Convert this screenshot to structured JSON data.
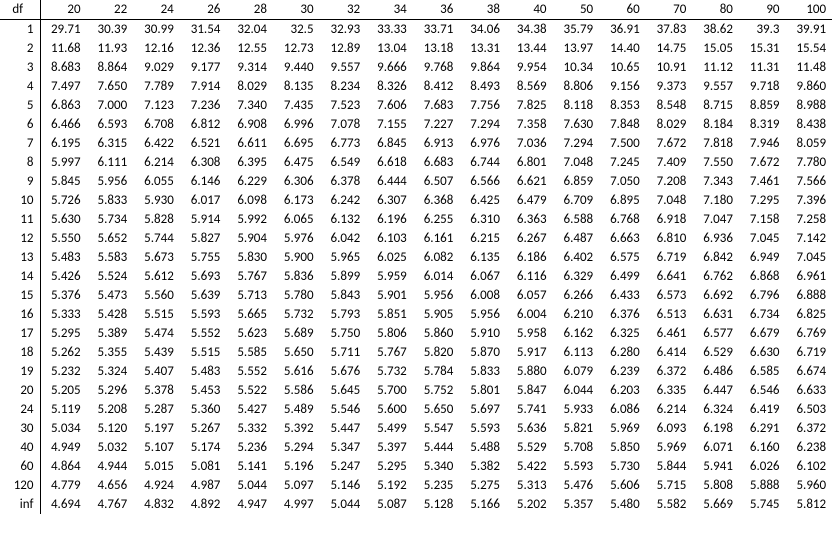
{
  "table": {
    "type": "table",
    "header_label": "df",
    "columns": [
      "20",
      "22",
      "24",
      "26",
      "28",
      "30",
      "32",
      "34",
      "36",
      "38",
      "40",
      "50",
      "60",
      "70",
      "80",
      "90",
      "100"
    ],
    "row_labels": [
      "1",
      "2",
      "3",
      "4",
      "5",
      "6",
      "7",
      "8",
      "9",
      "10",
      "11",
      "12",
      "13",
      "14",
      "15",
      "16",
      "17",
      "18",
      "19",
      "20",
      "24",
      "30",
      "40",
      "60",
      "120",
      "inf"
    ],
    "rows": [
      [
        "29.71",
        "30.39",
        "30.99",
        "31.54",
        "32.04",
        "32.5",
        "32.93",
        "33.33",
        "33.71",
        "34.06",
        "34.38",
        "35.79",
        "36.91",
        "37.83",
        "38.62",
        "39.3",
        "39.91"
      ],
      [
        "11.68",
        "11.93",
        "12.16",
        "12.36",
        "12.55",
        "12.73",
        "12.89",
        "13.04",
        "13.18",
        "13.31",
        "13.44",
        "13.97",
        "14.40",
        "14.75",
        "15.05",
        "15.31",
        "15.54"
      ],
      [
        "8.683",
        "8.864",
        "9.029",
        "9.177",
        "9.314",
        "9.440",
        "9.557",
        "9.666",
        "9.768",
        "9.864",
        "9.954",
        "10.34",
        "10.65",
        "10.91",
        "11.12",
        "11.31",
        "11.48"
      ],
      [
        "7.497",
        "7.650",
        "7.789",
        "7.914",
        "8.029",
        "8.135",
        "8.234",
        "8.326",
        "8.412",
        "8.493",
        "8.569",
        "8.806",
        "9.156",
        "9.373",
        "9.557",
        "9.718",
        "9.860"
      ],
      [
        "6.863",
        "7.000",
        "7.123",
        "7.236",
        "7.340",
        "7.435",
        "7.523",
        "7.606",
        "7.683",
        "7.756",
        "7.825",
        "8.118",
        "8.353",
        "8.548",
        "8.715",
        "8.859",
        "8.988"
      ],
      [
        "6.466",
        "6.593",
        "6.708",
        "6.812",
        "6.908",
        "6.996",
        "7.078",
        "7.155",
        "7.227",
        "7.294",
        "7.358",
        "7.630",
        "7.848",
        "8.029",
        "8.184",
        "8.319",
        "8.438"
      ],
      [
        "6.195",
        "6.315",
        "6.422",
        "6.521",
        "6.611",
        "6.695",
        "6.773",
        "6.845",
        "6.913",
        "6.976",
        "7.036",
        "7.294",
        "7.500",
        "7.672",
        "7.818",
        "7.946",
        "8.059"
      ],
      [
        "5.997",
        "6.111",
        "6.214",
        "6.308",
        "6.395",
        "6.475",
        "6.549",
        "6.618",
        "6.683",
        "6.744",
        "6.801",
        "7.048",
        "7.245",
        "7.409",
        "7.550",
        "7.672",
        "7.780"
      ],
      [
        "5.845",
        "5.956",
        "6.055",
        "6.146",
        "6.229",
        "6.306",
        "6.378",
        "6.444",
        "6.507",
        "6.566",
        "6.621",
        "6.859",
        "7.050",
        "7.208",
        "7.343",
        "7.461",
        "7.566"
      ],
      [
        "5.726",
        "5.833",
        "5.930",
        "6.017",
        "6.098",
        "6.173",
        "6.242",
        "6.307",
        "6.368",
        "6.425",
        "6.479",
        "6.709",
        "6.895",
        "7.048",
        "7.180",
        "7.295",
        "7.396"
      ],
      [
        "5.630",
        "5.734",
        "5.828",
        "5.914",
        "5.992",
        "6.065",
        "6.132",
        "6.196",
        "6.255",
        "6.310",
        "6.363",
        "6.588",
        "6.768",
        "6.918",
        "7.047",
        "7.158",
        "7.258"
      ],
      [
        "5.550",
        "5.652",
        "5.744",
        "5.827",
        "5.904",
        "5.976",
        "6.042",
        "6.103",
        "6.161",
        "6.215",
        "6.267",
        "6.487",
        "6.663",
        "6.810",
        "6.936",
        "7.045",
        "7.142"
      ],
      [
        "5.483",
        "5.583",
        "5.673",
        "5.755",
        "5.830",
        "5.900",
        "5.965",
        "6.025",
        "6.082",
        "6.135",
        "6.186",
        "6.402",
        "6.575",
        "6.719",
        "6.842",
        "6.949",
        "7.045"
      ],
      [
        "5.426",
        "5.524",
        "5.612",
        "5.693",
        "5.767",
        "5.836",
        "5.899",
        "5.959",
        "6.014",
        "6.067",
        "6.116",
        "6.329",
        "6.499",
        "6.641",
        "6.762",
        "6.868",
        "6.961"
      ],
      [
        "5.376",
        "5.473",
        "5.560",
        "5.639",
        "5.713",
        "5.780",
        "5.843",
        "5.901",
        "5.956",
        "6.008",
        "6.057",
        "6.266",
        "6.433",
        "6.573",
        "6.692",
        "6.796",
        "6.888"
      ],
      [
        "5.333",
        "5.428",
        "5.515",
        "5.593",
        "5.665",
        "5.732",
        "5.793",
        "5.851",
        "5.905",
        "5.956",
        "6.004",
        "6.210",
        "6.376",
        "6.513",
        "6.631",
        "6.734",
        "6.825"
      ],
      [
        "5.295",
        "5.389",
        "5.474",
        "5.552",
        "5.623",
        "5.689",
        "5.750",
        "5.806",
        "5.860",
        "5.910",
        "5.958",
        "6.162",
        "6.325",
        "6.461",
        "6.577",
        "6.679",
        "6.769"
      ],
      [
        "5.262",
        "5.355",
        "5.439",
        "5.515",
        "5.585",
        "5.650",
        "5.711",
        "5.767",
        "5.820",
        "5.870",
        "5.917",
        "6.113",
        "6.280",
        "6.414",
        "6.529",
        "6.630",
        "6.719"
      ],
      [
        "5.232",
        "5.324",
        "5.407",
        "5.483",
        "5.552",
        "5.616",
        "5.676",
        "5.732",
        "5.784",
        "5.833",
        "5.880",
        "6.079",
        "6.239",
        "6.372",
        "6.486",
        "6.585",
        "6.674"
      ],
      [
        "5.205",
        "5.296",
        "5.378",
        "5.453",
        "5.522",
        "5.586",
        "5.645",
        "5.700",
        "5.752",
        "5.801",
        "5.847",
        "6.044",
        "6.203",
        "6.335",
        "6.447",
        "6.546",
        "6.633"
      ],
      [
        "5.119",
        "5.208",
        "5.287",
        "5.360",
        "5.427",
        "5.489",
        "5.546",
        "5.600",
        "5.650",
        "5.697",
        "5.741",
        "5.933",
        "6.086",
        "6.214",
        "6.324",
        "6.419",
        "6.503"
      ],
      [
        "5.034",
        "5.120",
        "5.197",
        "5.267",
        "5.332",
        "5.392",
        "5.447",
        "5.499",
        "5.547",
        "5.593",
        "5.636",
        "5.821",
        "5.969",
        "6.093",
        "6.198",
        "6.291",
        "6.372"
      ],
      [
        "4.949",
        "5.032",
        "5.107",
        "5.174",
        "5.236",
        "5.294",
        "5.347",
        "5.397",
        "5.444",
        "5.488",
        "5.529",
        "5.708",
        "5.850",
        "5.969",
        "6.071",
        "6.160",
        "6.238"
      ],
      [
        "4.864",
        "4.944",
        "5.015",
        "5.081",
        "5.141",
        "5.196",
        "5.247",
        "5.295",
        "5.340",
        "5.382",
        "5.422",
        "5.593",
        "5.730",
        "5.844",
        "5.941",
        "6.026",
        "6.102"
      ],
      [
        "4.779",
        "4.656",
        "4.924",
        "4.987",
        "5.044",
        "5.097",
        "5.146",
        "5.192",
        "5.235",
        "5.275",
        "5.313",
        "5.476",
        "5.606",
        "5.715",
        "5.808",
        "5.888",
        "5.960"
      ],
      [
        "4.694",
        "4.767",
        "4.832",
        "4.892",
        "4.947",
        "4.997",
        "5.044",
        "5.087",
        "5.128",
        "5.166",
        "5.202",
        "5.357",
        "5.480",
        "5.582",
        "5.669",
        "5.745",
        "5.812"
      ]
    ],
    "font_size": 13,
    "text_color": "#000000",
    "background_color": "#ffffff",
    "border_color": "#000000",
    "col_widths": {
      "df": 40,
      "value": 46.6
    }
  }
}
